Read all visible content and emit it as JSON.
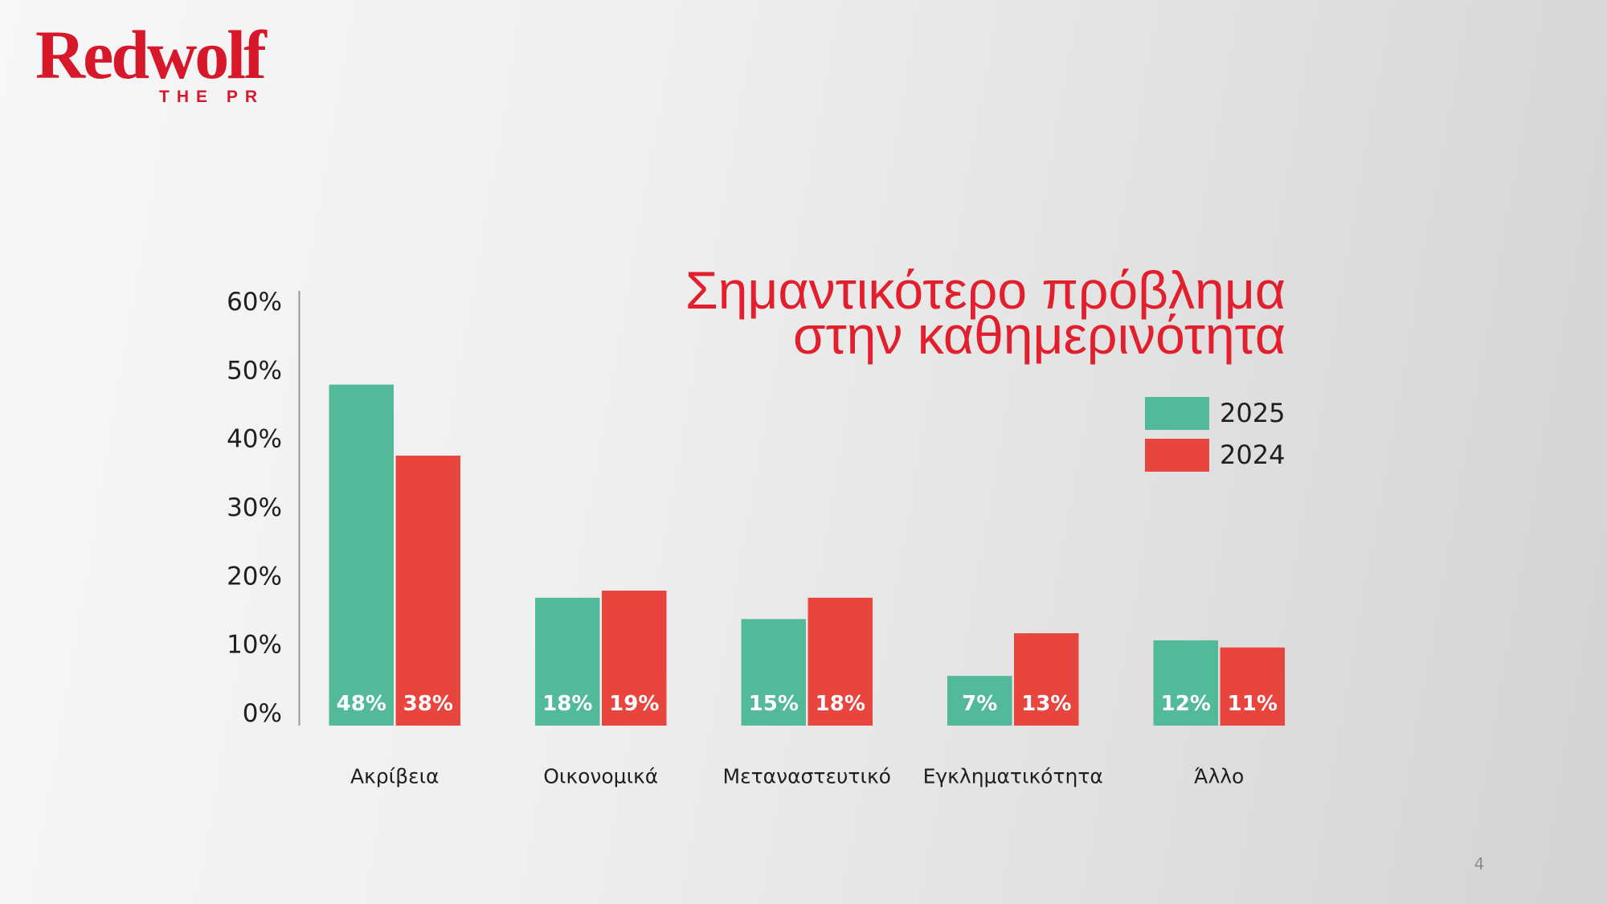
{
  "logo": {
    "wordmark": "Redwolf",
    "tagline": "THE PR"
  },
  "page_number": "4",
  "colors": {
    "brand_red": "#d7182a",
    "title_red": "#e21f2d",
    "text": "#1f1f1f",
    "axis": "#9a9a9a",
    "page_number": "#8c8c8c"
  },
  "chart_data": {
    "type": "bar",
    "title": "Σημαντικότερο πρόβλημα\nστην καθημερινότητα",
    "categories": [
      "Ακρίβεια",
      "Οικονομικά",
      "Μεταναστευτικό",
      "Εγκληματικότητα",
      "Άλλο"
    ],
    "series": [
      {
        "name": "2025",
        "values": [
          48,
          18,
          15,
          7,
          12
        ],
        "color": "#53b99b"
      },
      {
        "name": "2024",
        "values": [
          38,
          19,
          18,
          13,
          11
        ],
        "color": "#e8453f"
      }
    ],
    "unit": "%",
    "ylim": [
      0,
      60
    ],
    "yticks": [
      0,
      10,
      20,
      30,
      40,
      50,
      60
    ],
    "data_label_position": "inside-bottom",
    "legend": "top-right",
    "grid": false
  }
}
